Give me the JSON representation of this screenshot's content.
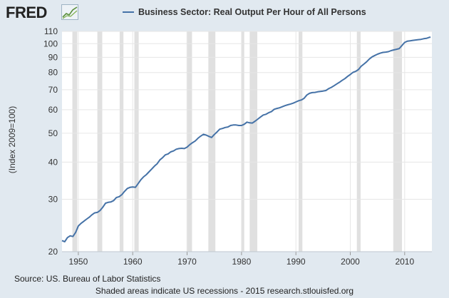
{
  "header": {
    "logo_text": "FRED",
    "logo_icon": "sparkline-icon"
  },
  "colors": {
    "background": "#e1e9f0",
    "plot_background": "#ffffff",
    "series_line": "#4572a7",
    "recession_band": "#e0e0e0",
    "gridline": "#e6e6e6"
  },
  "footer": {
    "source": "Source: US. Bureau of Labor Statistics",
    "note": "Shaded areas indicate US recessions - 2015 research.stlouisfed.org"
  },
  "chart_data": {
    "type": "line",
    "title": "",
    "xlabel": "",
    "ylabel": "(Index 2009=100)",
    "y_scale": "log",
    "ylim": [
      20,
      110
    ],
    "xlim": [
      1947,
      2015
    ],
    "y_ticks": [
      20,
      30,
      40,
      50,
      60,
      70,
      80,
      90,
      100,
      110
    ],
    "x_ticks": [
      1950,
      1960,
      1970,
      1980,
      1990,
      2000,
      2010
    ],
    "grid": true,
    "legend_position": "top",
    "recessions": [
      [
        1948.9,
        1949.8
      ],
      [
        1953.5,
        1954.4
      ],
      [
        1957.6,
        1958.3
      ],
      [
        1960.3,
        1961.1
      ],
      [
        1969.9,
        1970.9
      ],
      [
        1973.9,
        1975.2
      ],
      [
        1980.0,
        1980.5
      ],
      [
        1981.5,
        1982.9
      ],
      [
        1990.5,
        1991.2
      ],
      [
        2001.2,
        2001.9
      ],
      [
        2007.9,
        2009.5
      ]
    ],
    "series": [
      {
        "name": "Business Sector: Real Output Per Hour of All Persons",
        "x": [
          1947.0,
          1947.5,
          1948.0,
          1948.5,
          1949.0,
          1949.5,
          1950.0,
          1950.5,
          1951.0,
          1951.5,
          1952.0,
          1952.5,
          1953.0,
          1953.5,
          1954.0,
          1954.5,
          1955.0,
          1955.5,
          1956.0,
          1956.5,
          1957.0,
          1957.5,
          1958.0,
          1958.5,
          1959.0,
          1959.5,
          1960.0,
          1960.5,
          1961.0,
          1961.5,
          1962.0,
          1962.5,
          1963.0,
          1963.5,
          1964.0,
          1964.5,
          1965.0,
          1965.5,
          1966.0,
          1966.5,
          1967.0,
          1967.5,
          1968.0,
          1968.5,
          1969.0,
          1969.5,
          1970.0,
          1970.5,
          1971.0,
          1971.5,
          1972.0,
          1972.5,
          1973.0,
          1973.5,
          1974.0,
          1974.5,
          1975.0,
          1975.5,
          1976.0,
          1976.5,
          1977.0,
          1977.5,
          1978.0,
          1978.5,
          1979.0,
          1979.5,
          1980.0,
          1980.5,
          1981.0,
          1981.5,
          1982.0,
          1982.5,
          1983.0,
          1983.5,
          1984.0,
          1984.5,
          1985.0,
          1985.5,
          1986.0,
          1986.5,
          1987.0,
          1987.5,
          1988.0,
          1988.5,
          1989.0,
          1989.5,
          1990.0,
          1990.5,
          1991.0,
          1991.5,
          1992.0,
          1992.5,
          1993.0,
          1993.5,
          1994.0,
          1994.5,
          1995.0,
          1995.5,
          1996.0,
          1996.5,
          1997.0,
          1997.5,
          1998.0,
          1998.5,
          1999.0,
          1999.5,
          2000.0,
          2000.5,
          2001.0,
          2001.5,
          2002.0,
          2002.5,
          2003.0,
          2003.5,
          2004.0,
          2004.5,
          2005.0,
          2005.5,
          2006.0,
          2006.5,
          2007.0,
          2007.5,
          2008.0,
          2008.5,
          2009.0,
          2009.5,
          2010.0,
          2010.5,
          2011.0,
          2011.5,
          2012.0,
          2012.5,
          2013.0,
          2013.5,
          2014.0,
          2014.5,
          2014.75
        ],
        "values": [
          21.8,
          21.6,
          22.3,
          22.6,
          22.5,
          23.2,
          24.4,
          24.9,
          25.3,
          25.7,
          26.1,
          26.6,
          27.0,
          27.1,
          27.5,
          28.2,
          29.1,
          29.3,
          29.4,
          29.7,
          30.4,
          30.6,
          31.1,
          31.9,
          32.6,
          32.9,
          33.0,
          32.9,
          33.9,
          34.9,
          35.7,
          36.3,
          37.1,
          37.9,
          38.8,
          39.5,
          40.7,
          41.4,
          42.3,
          42.6,
          43.3,
          43.6,
          44.2,
          44.4,
          44.5,
          44.4,
          44.9,
          45.8,
          46.5,
          47.1,
          48.1,
          48.9,
          49.6,
          49.3,
          48.8,
          48.4,
          49.5,
          50.5,
          51.6,
          51.9,
          52.3,
          52.5,
          53.1,
          53.3,
          53.3,
          53.1,
          53.1,
          53.6,
          54.5,
          54.2,
          54.1,
          54.9,
          55.8,
          56.7,
          57.6,
          57.9,
          58.6,
          59.1,
          60.2,
          60.6,
          60.9,
          61.4,
          61.9,
          62.3,
          62.7,
          63.1,
          63.7,
          64.3,
          64.7,
          65.5,
          67.2,
          68.1,
          68.5,
          68.6,
          68.9,
          69.1,
          69.3,
          69.6,
          70.6,
          71.3,
          72.2,
          73.2,
          74.2,
          75.3,
          76.3,
          77.6,
          78.8,
          80.1,
          80.7,
          81.9,
          84.0,
          85.4,
          86.9,
          88.8,
          90.3,
          91.3,
          92.2,
          92.9,
          93.5,
          93.7,
          94.0,
          94.8,
          95.3,
          95.8,
          96.3,
          98.6,
          101.0,
          102.0,
          102.3,
          102.6,
          102.9,
          103.2,
          103.4,
          103.9,
          104.2,
          105.0,
          105.2
        ]
      }
    ]
  }
}
